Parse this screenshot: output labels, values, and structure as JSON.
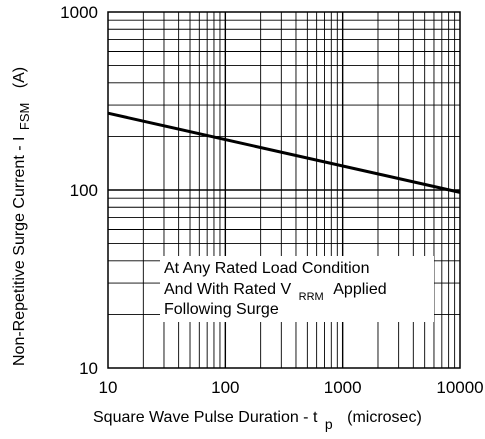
{
  "chart_data": {
    "type": "line",
    "xscale": "log",
    "yscale": "log",
    "xlim": [
      10,
      10000
    ],
    "ylim": [
      10,
      1000
    ],
    "grid": true,
    "x_ticks": [
      "10",
      "100",
      "1000",
      "10000"
    ],
    "y_ticks": [
      "10",
      "100",
      "1000"
    ],
    "xlabel": {
      "prefix": "Square Wave Pulse Duration - t",
      "subscript": "p",
      "suffix": "(microsec)"
    },
    "ylabel": {
      "prefix": "Non-Repetitive Surge Current - I",
      "subscript": "FSM",
      "suffix": "(A)"
    },
    "annotation": {
      "line1": "At Any Rated Load Condition",
      "line2_prefix": "And With Rated V",
      "line2_subscript": "RRM",
      "line2_suffix": "Applied",
      "line3": "Following Surge"
    },
    "series": [
      {
        "x": [
          10,
          10000
        ],
        "y": [
          270,
          97
        ]
      }
    ]
  }
}
